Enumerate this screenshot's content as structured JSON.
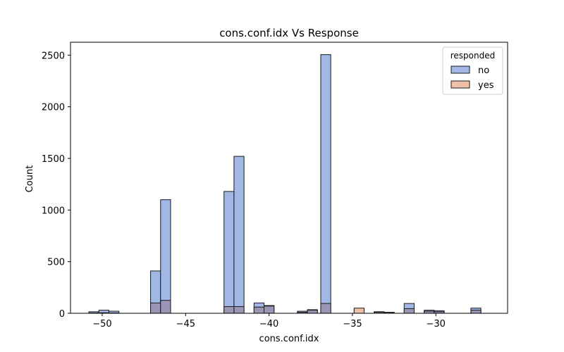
{
  "chart_data": {
    "type": "bar",
    "title": "cons.conf.idx Vs Response",
    "xlabel": "cons.conf.idx",
    "ylabel": "Count",
    "xlim": [
      -51.9,
      -25.7
    ],
    "ylim": [
      0,
      2625
    ],
    "xticks": [
      -50,
      -45,
      -40,
      -35,
      -30
    ],
    "xtick_labels": [
      "−50",
      "−45",
      "−40",
      "−35",
      "−30"
    ],
    "yticks": [
      0,
      500,
      1000,
      1500,
      2000,
      2500
    ],
    "ytick_labels": [
      "0",
      "500",
      "1000",
      "1500",
      "2000",
      "2500"
    ],
    "grid": false,
    "legend": {
      "title": "responded",
      "placement": "top-right",
      "entries": [
        {
          "name": "no",
          "color": "#a1b8e6"
        },
        {
          "name": "yes",
          "color": "#f0c0a7"
        }
      ]
    },
    "overlap_color": "#9c93b3",
    "bin_width": 0.6,
    "series": [
      {
        "name": "no",
        "color": "#a1b8e6",
        "bins": [
          {
            "x0": -50.8,
            "value": 15
          },
          {
            "x0": -50.2,
            "value": 30
          },
          {
            "x0": -49.6,
            "value": 20
          },
          {
            "x0": -47.1,
            "value": 410
          },
          {
            "x0": -46.5,
            "value": 1100
          },
          {
            "x0": -42.7,
            "value": 1180
          },
          {
            "x0": -42.1,
            "value": 1520
          },
          {
            "x0": -40.9,
            "value": 100
          },
          {
            "x0": -40.3,
            "value": 75
          },
          {
            "x0": -38.3,
            "value": 20
          },
          {
            "x0": -37.7,
            "value": 35
          },
          {
            "x0": -36.9,
            "value": 2505
          },
          {
            "x0": -34.9,
            "value": 35
          },
          {
            "x0": -33.7,
            "value": 15
          },
          {
            "x0": -33.1,
            "value": 10
          },
          {
            "x0": -31.9,
            "value": 95
          },
          {
            "x0": -30.7,
            "value": 30
          },
          {
            "x0": -30.1,
            "value": 25
          },
          {
            "x0": -27.9,
            "value": 50
          }
        ]
      },
      {
        "name": "yes",
        "color": "#f0c0a7",
        "bins": [
          {
            "x0": -50.8,
            "value": 3
          },
          {
            "x0": -50.2,
            "value": 5
          },
          {
            "x0": -49.6,
            "value": 3
          },
          {
            "x0": -47.1,
            "value": 100
          },
          {
            "x0": -46.5,
            "value": 125
          },
          {
            "x0": -42.7,
            "value": 65
          },
          {
            "x0": -42.1,
            "value": 65
          },
          {
            "x0": -40.9,
            "value": 60
          },
          {
            "x0": -40.3,
            "value": 70
          },
          {
            "x0": -38.3,
            "value": 10
          },
          {
            "x0": -37.7,
            "value": 30
          },
          {
            "x0": -36.9,
            "value": 95
          },
          {
            "x0": -34.9,
            "value": 50
          },
          {
            "x0": -33.7,
            "value": 10
          },
          {
            "x0": -33.1,
            "value": 8
          },
          {
            "x0": -31.9,
            "value": 45
          },
          {
            "x0": -30.7,
            "value": 20
          },
          {
            "x0": -30.1,
            "value": 15
          },
          {
            "x0": -27.9,
            "value": 30
          }
        ]
      }
    ]
  }
}
